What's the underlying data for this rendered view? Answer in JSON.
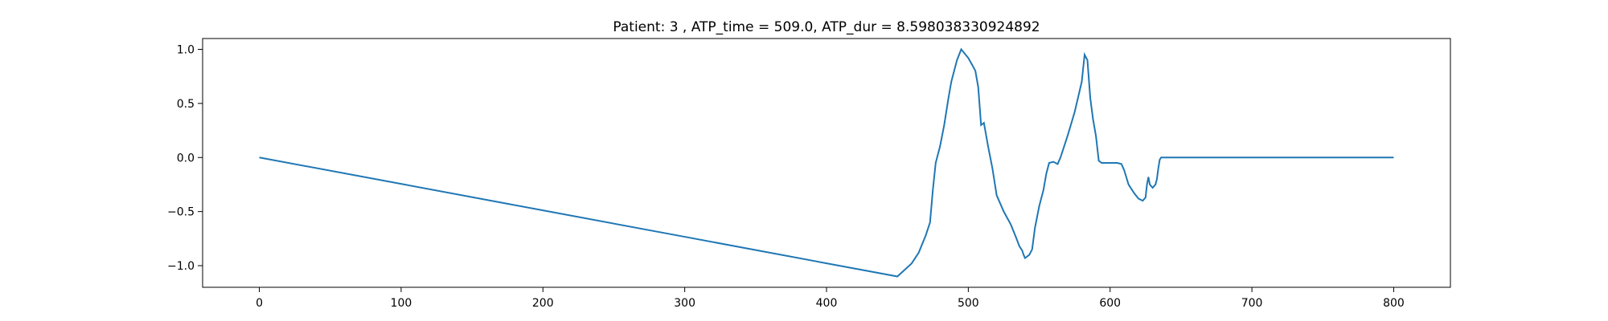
{
  "chart_data": {
    "type": "line",
    "title": "Patient: 3 , ATP_time = 509.0, ATP_dur = 8.598038330924892",
    "xlabel": "",
    "ylabel": "",
    "xlim": [
      -40,
      840
    ],
    "ylim": [
      -1.2,
      1.1
    ],
    "x_ticks": [
      0,
      100,
      200,
      300,
      400,
      500,
      600,
      700,
      800
    ],
    "y_ticks": [
      -1.0,
      -0.5,
      0.0,
      0.5,
      1.0
    ],
    "y_tick_labels": [
      "−1.0",
      "−0.5",
      "0.0",
      "0.5",
      "1.0"
    ],
    "grid": false,
    "line_color": "#1f77b4",
    "series": [
      {
        "x": [
          0,
          100,
          200,
          300,
          400,
          450,
          460,
          465,
          470,
          473,
          475,
          477,
          480,
          483,
          486,
          488,
          490,
          492,
          495,
          500,
          503,
          505,
          507,
          509,
          511,
          514,
          517,
          520,
          525,
          530,
          534,
          536,
          537,
          538,
          539,
          540,
          543,
          545,
          547,
          550,
          553,
          555,
          557,
          560,
          563,
          565,
          570,
          575,
          580,
          582,
          584,
          586,
          588,
          590,
          592,
          594,
          596,
          600,
          605,
          608,
          610,
          613,
          617,
          620,
          623,
          625,
          626,
          627,
          628,
          630,
          632,
          633,
          634,
          635,
          636,
          637,
          640,
          660,
          700,
          750,
          800
        ],
        "y": [
          0.0,
          -0.244,
          -0.489,
          -0.733,
          -0.978,
          -1.1,
          -0.98,
          -0.88,
          -0.72,
          -0.6,
          -0.3,
          -0.05,
          0.1,
          0.3,
          0.55,
          0.7,
          0.8,
          0.9,
          1.0,
          0.92,
          0.85,
          0.8,
          0.65,
          0.3,
          0.32,
          0.1,
          -0.1,
          -0.35,
          -0.5,
          -0.62,
          -0.75,
          -0.82,
          -0.84,
          -0.86,
          -0.9,
          -0.93,
          -0.9,
          -0.85,
          -0.65,
          -0.45,
          -0.3,
          -0.15,
          -0.05,
          -0.04,
          -0.06,
          0.0,
          0.2,
          0.42,
          0.7,
          0.95,
          0.9,
          0.55,
          0.35,
          0.2,
          -0.03,
          -0.05,
          -0.05,
          -0.05,
          -0.05,
          -0.06,
          -0.12,
          -0.25,
          -0.33,
          -0.38,
          -0.4,
          -0.37,
          -0.25,
          -0.18,
          -0.25,
          -0.28,
          -0.25,
          -0.2,
          -0.1,
          -0.02,
          0.0,
          0.0,
          0.0,
          0.0,
          0.0,
          0.0,
          0.0
        ]
      }
    ]
  }
}
